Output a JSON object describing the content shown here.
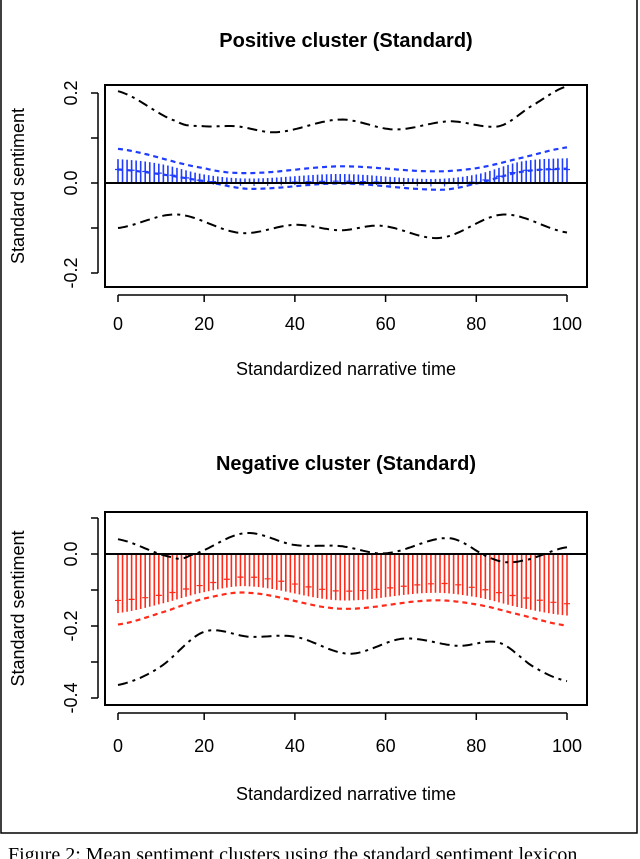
{
  "caption": "Figure 2: Mean sentiment clusters using the standard sentiment lexicon",
  "chart_data": [
    {
      "type": "bar",
      "title": "Positive cluster (Standard)",
      "xlabel": "Standardized narrative time",
      "ylabel": "Standard sentiment",
      "xlim": [
        1,
        100
      ],
      "ylim": [
        -0.22,
        0.22
      ],
      "xticks": [
        "0",
        "20",
        "40",
        "60",
        "80",
        "100"
      ],
      "yticks": [
        -0.2,
        -0.1,
        0.0,
        0.1,
        0.2
      ],
      "ytick_labels": [
        "-0.2",
        "",
        "0.0",
        "",
        "0.2"
      ],
      "bar_color": "#1f3cff",
      "band_color": "#1f3cff",
      "mean": {
        "x": [
          1,
          10,
          20,
          30,
          50,
          70,
          80,
          90,
          100
        ],
        "y": [
          0.053,
          0.043,
          0.019,
          0.01,
          0.02,
          0.009,
          0.019,
          0.048,
          0.055
        ]
      },
      "median": {
        "x": [
          1,
          10,
          20,
          30,
          50,
          70,
          80,
          90,
          100
        ],
        "y": [
          0.03,
          0.022,
          0.005,
          0.0,
          0.004,
          -0.001,
          0.003,
          0.027,
          0.03
        ]
      },
      "inner_upper": {
        "x": [
          1,
          20,
          30,
          50,
          70,
          80,
          90,
          100
        ],
        "y": [
          0.076,
          0.033,
          0.022,
          0.037,
          0.026,
          0.033,
          0.056,
          0.079
        ]
      },
      "inner_lower": {
        "x": [
          1,
          10,
          20,
          30,
          50,
          72,
          80,
          90,
          100
        ],
        "y": [
          0.03,
          0.02,
          0.004,
          -0.013,
          -0.001,
          -0.015,
          -0.001,
          0.025,
          0.032
        ]
      },
      "outer_upper": {
        "x": [
          1,
          14,
          20,
          27,
          36,
          50,
          62,
          74,
          85,
          92,
          100
        ],
        "y": [
          0.204,
          0.137,
          0.126,
          0.126,
          0.113,
          0.141,
          0.119,
          0.137,
          0.126,
          0.17,
          0.215
        ]
      },
      "outer_lower": {
        "x": [
          1,
          14,
          28,
          40,
          50,
          59,
          72,
          86,
          100
        ],
        "y": [
          -0.1,
          -0.07,
          -0.111,
          -0.093,
          -0.105,
          -0.095,
          -0.122,
          -0.07,
          -0.11
        ]
      }
    },
    {
      "type": "bar",
      "title": "Negative cluster (Standard)",
      "xlabel": "Standardized narrative time",
      "ylabel": "Standard sentiment",
      "xlim": [
        1,
        100
      ],
      "ylim": [
        -0.42,
        0.115
      ],
      "xticks": [
        "0",
        "20",
        "40",
        "60",
        "80",
        "100"
      ],
      "yticks": [
        0.1,
        0.0,
        -0.1,
        -0.2,
        -0.3,
        -0.4
      ],
      "ytick_labels": [
        "",
        "0.0",
        "",
        "-0.2",
        "",
        "-0.4"
      ],
      "bar_color": "#ff2a1a",
      "band_color": "#ff2a1a",
      "mean": {
        "x": [
          1,
          10,
          20,
          30,
          50,
          70,
          80,
          90,
          100
        ],
        "y": [
          -0.164,
          -0.14,
          -0.106,
          -0.09,
          -0.129,
          -0.108,
          -0.12,
          -0.15,
          -0.171
        ]
      },
      "median": {
        "x": [
          1,
          10,
          20,
          30,
          50,
          72,
          80,
          90,
          100
        ],
        "y": [
          -0.129,
          -0.115,
          -0.085,
          -0.064,
          -0.103,
          -0.082,
          -0.095,
          -0.12,
          -0.138
        ]
      },
      "inner_lower": {
        "x": [
          1,
          10,
          20,
          30,
          50,
          70,
          80,
          90,
          100
        ],
        "y": [
          -0.196,
          -0.165,
          -0.124,
          -0.108,
          -0.152,
          -0.129,
          -0.14,
          -0.17,
          -0.199
        ]
      },
      "outer_upper": {
        "x": [
          1,
          13,
          17,
          29,
          40,
          50,
          60,
          74,
          84,
          90,
          100
        ],
        "y": [
          0.041,
          -0.009,
          -0.003,
          0.058,
          0.025,
          0.022,
          0.002,
          0.044,
          -0.015,
          -0.019,
          0.019
        ]
      },
      "outer_lower": {
        "x": [
          1,
          10,
          20,
          30,
          40,
          52,
          64,
          76,
          85,
          93,
          100
        ],
        "y": [
          -0.364,
          -0.316,
          -0.216,
          -0.23,
          -0.23,
          -0.277,
          -0.235,
          -0.255,
          -0.246,
          -0.316,
          -0.353
        ]
      }
    }
  ]
}
